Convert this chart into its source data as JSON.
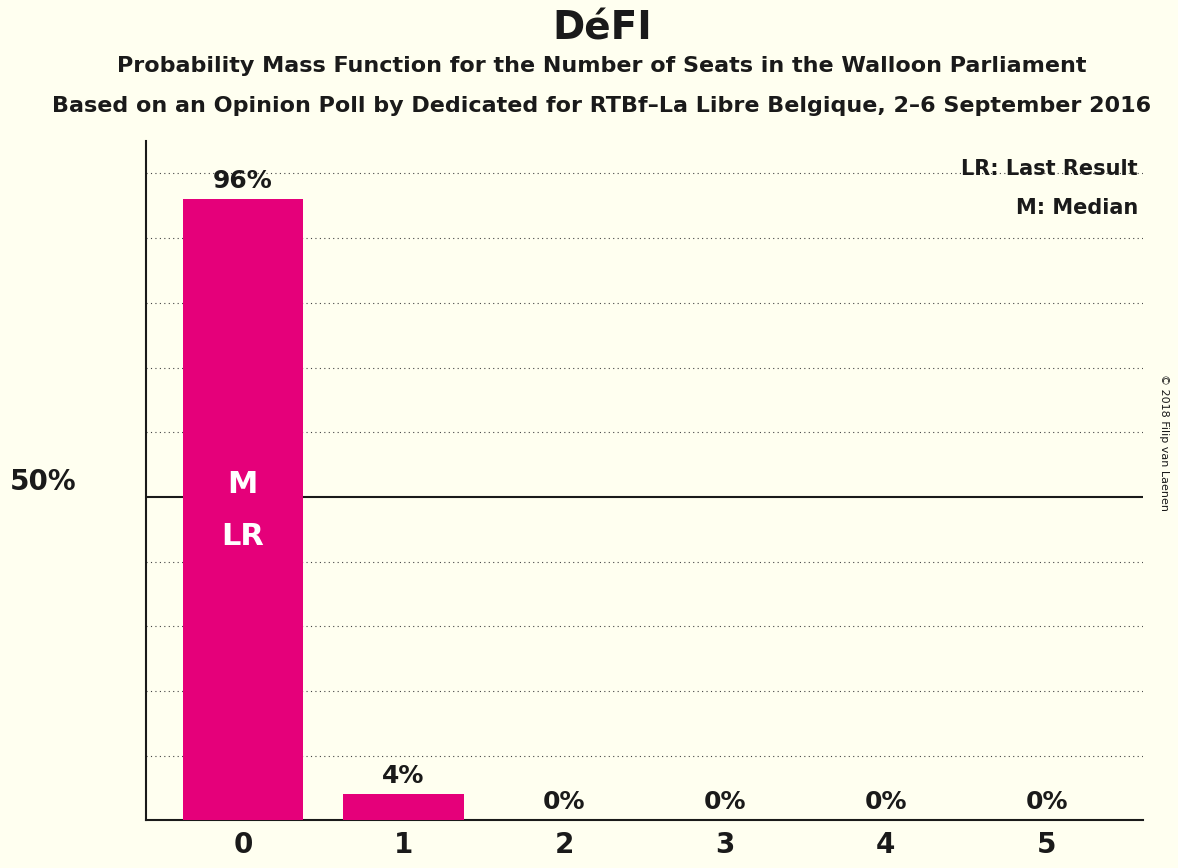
{
  "title": "DéFI",
  "subtitle1": "Probability Mass Function for the Number of Seats in the Walloon Parliament",
  "subtitle2": "Based on an Opinion Poll by Dedicated for RTBf–La Libre Belgique, 2–6 September 2016",
  "copyright": "© 2018 Filip van Laenen",
  "categories": [
    0,
    1,
    2,
    3,
    4,
    5
  ],
  "values": [
    0.96,
    0.04,
    0.0,
    0.0,
    0.0,
    0.0
  ],
  "bar_color": "#e5007a",
  "background_color": "#fffff0",
  "ylabel_50": "50%",
  "y50_line_color": "#1a1a1a",
  "dotted_line_color": "#444444",
  "text_color": "#1a1a1a",
  "bar_label_color_outside": "#1a1a1a",
  "legend_lr": "LR: Last Result",
  "legend_m": "M: Median",
  "ylim": [
    0,
    1.05
  ],
  "yticks": [
    0.1,
    0.2,
    0.3,
    0.4,
    0.5,
    0.6,
    0.7,
    0.8,
    0.9,
    1.0
  ],
  "title_fontsize": 28,
  "subtitle_fontsize": 16,
  "axis_fontsize": 20,
  "bar_label_fontsize": 18,
  "inner_label_fontsize": 22,
  "legend_fontsize": 15
}
